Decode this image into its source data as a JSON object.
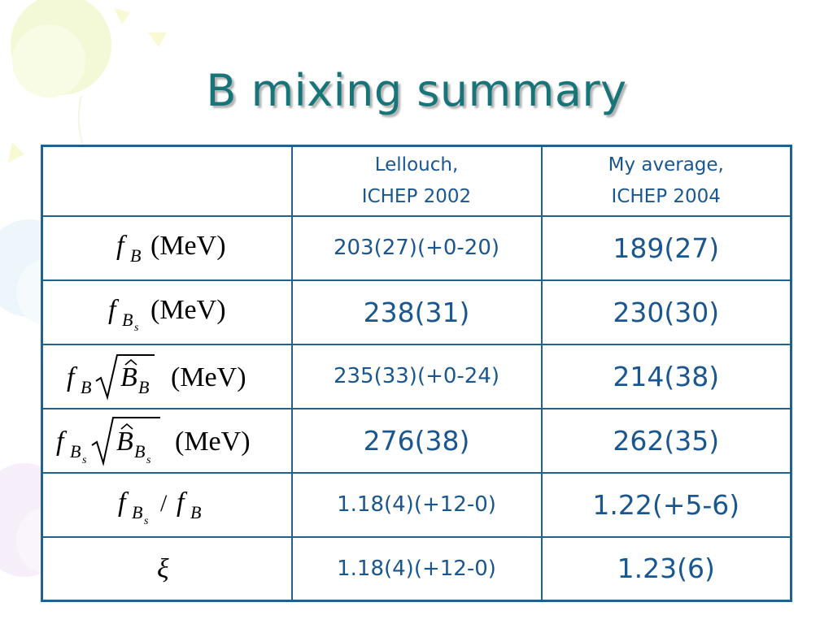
{
  "slide": {
    "title": "B mixing summary"
  },
  "table": {
    "headers": {
      "col1_line1": "Lellouch,",
      "col1_line2": "ICHEP 2002",
      "col2_line1": "My average,",
      "col2_line2": "ICHEP 2004"
    },
    "rows": [
      {
        "quantity": "f_B (MeV)",
        "unit": "(MeV)",
        "lellouch": "203(27)(+0-20)",
        "my_average": "189(27)"
      },
      {
        "quantity": "f_Bs (MeV)",
        "unit": "(MeV)",
        "lellouch": "238(31)",
        "my_average": "230(30)"
      },
      {
        "quantity": "f_B sqrt(B_B) (MeV)",
        "unit": "(MeV)",
        "lellouch": "235(33)(+0-24)",
        "my_average": "214(38)"
      },
      {
        "quantity": "f_Bs sqrt(B_Bs) (MeV)",
        "unit": "(MeV)",
        "lellouch": "276(38)",
        "my_average": "262(35)"
      },
      {
        "quantity": "f_Bs / f_B",
        "lellouch": "1.18(4)(+12-0)",
        "my_average": "1.22(+5-6)"
      },
      {
        "quantity": "ξ",
        "lellouch": "1.18(4)(+12-0)",
        "my_average": "1.23(6)"
      }
    ],
    "symbols": {
      "f": "f",
      "B": "B",
      "s": "s",
      "slash": "/",
      "xi": "ξ"
    }
  },
  "theme": {
    "title_color": "#17757a",
    "border_color": "#21618e",
    "value_color": "#1a568f"
  }
}
